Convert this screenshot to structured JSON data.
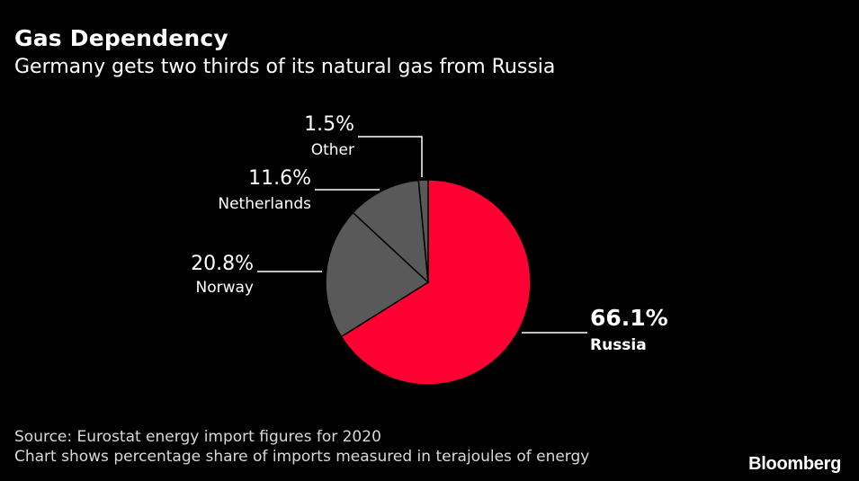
{
  "header": {
    "title": "Gas Dependency",
    "subtitle": "Germany gets two thirds of its natural gas from Russia"
  },
  "chart_data": {
    "type": "pie",
    "slices": [
      {
        "label": "Russia",
        "value": 66.1,
        "display": "66.1%",
        "color": "#ff0033",
        "highlight": true
      },
      {
        "label": "Norway",
        "value": 20.8,
        "display": "20.8%",
        "color": "#595959",
        "highlight": false
      },
      {
        "label": "Netherlands",
        "value": 11.6,
        "display": "11.6%",
        "color": "#595959",
        "highlight": false
      },
      {
        "label": "Other",
        "value": 1.5,
        "display": "1.5%",
        "color": "#595959",
        "highlight": false
      }
    ],
    "slice_stroke": "#000000",
    "label_color": "#ffffff",
    "leader_color": "#ffffff"
  },
  "footer": {
    "source": "Source: Eurostat energy import figures for 2020",
    "note": "Chart shows percentage share of imports measured in terajoules of energy",
    "brand": "Bloomberg"
  }
}
